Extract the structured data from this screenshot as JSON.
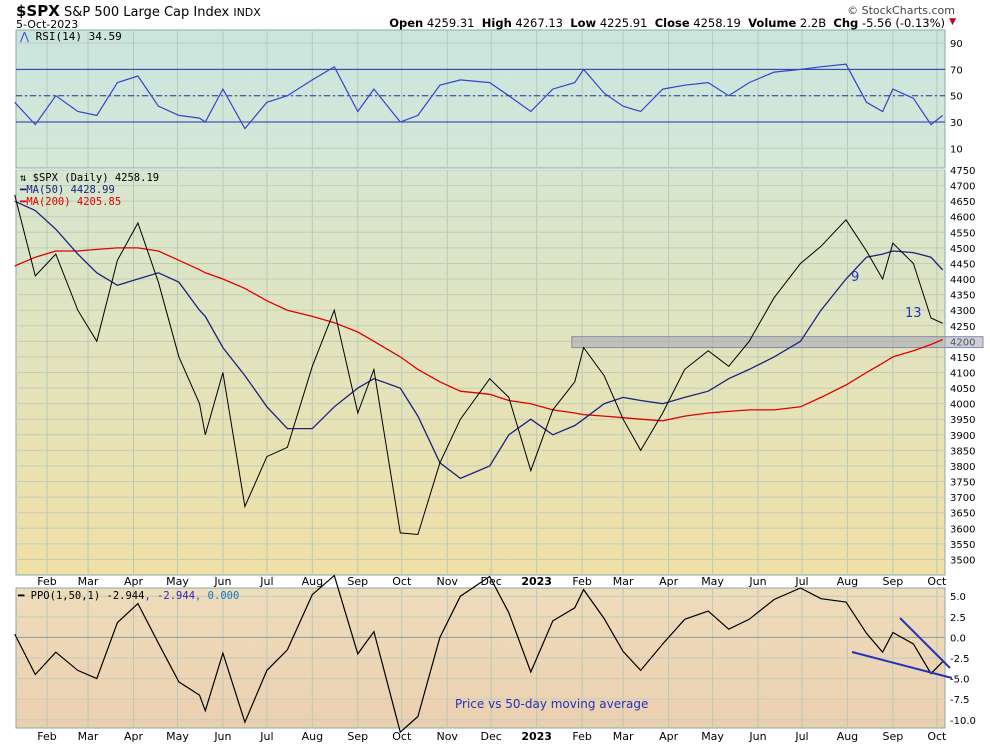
{
  "header": {
    "symbol": "$SPX",
    "name": "S&P 500 Large Cap Index",
    "exchange": "INDX",
    "date": "5-Oct-2023",
    "brand": "© StockCharts.com",
    "open_label": "Open",
    "open": "4259.31",
    "high_label": "High",
    "high": "4267.13",
    "low_label": "Low",
    "low": "4225.91",
    "close_label": "Close",
    "close": "4258.19",
    "volume_label": "Volume",
    "volume": "2.2B",
    "chg_label": "Chg",
    "chg": "-5.56 (-0.13%)",
    "chg_color": "#c00020"
  },
  "colors": {
    "price": "#000000",
    "ma50": "#1a237e",
    "ma200": "#e00000",
    "rsi": "#3344cc",
    "ppo": "#000000",
    "annotation": "#2233bb"
  },
  "chart_data": [
    {
      "type": "line",
      "panel": "rsi",
      "title": "RSI(14) 34.59",
      "ylim": [
        0,
        100
      ],
      "yticks": [
        90,
        70,
        50,
        30,
        10
      ],
      "reference_lines": [
        70,
        50,
        30
      ],
      "x": [
        "2022-01-10",
        "2022-01-24",
        "2022-02-07",
        "2022-02-22",
        "2022-03-07",
        "2022-03-21",
        "2022-04-04",
        "2022-04-18",
        "2022-05-02",
        "2022-05-16",
        "2022-05-20",
        "2022-06-01",
        "2022-06-16",
        "2022-07-01",
        "2022-07-15",
        "2022-08-01",
        "2022-08-16",
        "2022-09-01",
        "2022-09-12",
        "2022-09-30",
        "2022-10-12",
        "2022-10-27",
        "2022-11-10",
        "2022-11-30",
        "2022-12-13",
        "2022-12-28",
        "2023-01-12",
        "2023-01-27",
        "2023-02-02",
        "2023-02-16",
        "2023-03-01",
        "2023-03-13",
        "2023-03-28",
        "2023-04-12",
        "2023-04-28",
        "2023-05-12",
        "2023-05-26",
        "2023-06-12",
        "2023-06-30",
        "2023-07-14",
        "2023-07-31",
        "2023-08-14",
        "2023-08-25",
        "2023-09-01",
        "2023-09-15",
        "2023-09-27",
        "2023-10-05"
      ],
      "values": [
        45,
        28,
        50,
        38,
        35,
        60,
        65,
        42,
        35,
        33,
        30,
        55,
        25,
        45,
        50,
        62,
        72,
        38,
        55,
        30,
        35,
        58,
        62,
        60,
        50,
        38,
        55,
        60,
        70,
        52,
        42,
        38,
        55,
        58,
        60,
        50,
        60,
        68,
        70,
        72,
        74,
        45,
        38,
        55,
        48,
        28,
        35
      ]
    },
    {
      "type": "line",
      "panel": "price",
      "title": "$SPX (Daily) 4258.19",
      "ylim": [
        3450,
        4750
      ],
      "yticks": [
        3500,
        3550,
        3600,
        3650,
        3700,
        3750,
        3800,
        3850,
        3900,
        3950,
        4000,
        4050,
        4100,
        4150,
        4200,
        4250,
        4300,
        4350,
        4400,
        4450,
        4500,
        4550,
        4600,
        4650,
        4700,
        4750
      ],
      "xticks": [
        "Feb",
        "Mar",
        "Apr",
        "May",
        "Jun",
        "Jul",
        "Aug",
        "Sep",
        "Oct",
        "Nov",
        "Dec",
        "2023",
        "Feb",
        "Mar",
        "Apr",
        "May",
        "Jun",
        "Jul",
        "Aug",
        "Sep",
        "Oct"
      ],
      "series": [
        {
          "name": "$SPX",
          "values": [
            4670,
            4410,
            4480,
            4300,
            4200,
            4460,
            4580,
            4390,
            4150,
            4000,
            3900,
            4100,
            3670,
            3830,
            3860,
            4120,
            4300,
            3970,
            4110,
            3585,
            3580,
            3810,
            3950,
            4080,
            4020,
            3785,
            3980,
            4070,
            4180,
            4090,
            3950,
            3850,
            3970,
            4110,
            4170,
            4120,
            4200,
            4340,
            4450,
            4505,
            4590,
            4490,
            4400,
            4515,
            4450,
            4275,
            4258
          ]
        },
        {
          "name": "MA(50) 4428.99",
          "values": [
            4650,
            4620,
            4560,
            4480,
            4420,
            4380,
            4400,
            4420,
            4390,
            4300,
            4280,
            4180,
            4090,
            3990,
            3920,
            3920,
            3990,
            4050,
            4080,
            4050,
            3960,
            3810,
            3760,
            3800,
            3900,
            3950,
            3900,
            3930,
            3950,
            4000,
            4020,
            4010,
            4000,
            4020,
            4040,
            4080,
            4110,
            4150,
            4200,
            4300,
            4400,
            4470,
            4480,
            4490,
            4485,
            4470,
            4429
          ]
        },
        {
          "name": "MA(200) 4205.85",
          "values": [
            4442,
            4470,
            4490,
            4490,
            4495,
            4500,
            4500,
            4490,
            4460,
            4430,
            4420,
            4400,
            4370,
            4330,
            4300,
            4280,
            4260,
            4230,
            4200,
            4150,
            4110,
            4070,
            4040,
            4030,
            4010,
            4000,
            3980,
            3970,
            3965,
            3960,
            3955,
            3950,
            3945,
            3960,
            3970,
            3975,
            3980,
            3980,
            3990,
            4020,
            4060,
            4100,
            4130,
            4150,
            4170,
            4190,
            4206
          ]
        }
      ],
      "annotations": [
        {
          "text": "9"
        },
        {
          "text": "13"
        }
      ],
      "support_zone": {
        "from": "2023-01-25",
        "to": "2023-10-05",
        "range": [
          4180,
          4215
        ]
      }
    },
    {
      "type": "line",
      "panel": "ppo",
      "title": "PPO(1,50,1) -2.944",
      "title_extra": [
        ", -2.944",
        ", 0.000"
      ],
      "ylim": [
        -11,
        6
      ],
      "yticks": [
        "5.0",
        "2.5",
        "0.0",
        "-2.5",
        "-5.0",
        "-7.5",
        "-10.0"
      ],
      "values": [
        0.4,
        -4.5,
        -1.8,
        -4,
        -5,
        1.8,
        4.1,
        -0.7,
        -5.4,
        -7,
        -8.9,
        -1.9,
        -10.3,
        -4,
        -1.5,
        5.2,
        7.5,
        -2,
        0.7,
        -11.5,
        -9.6,
        0,
        5,
        7.4,
        3,
        -4.2,
        2,
        3.6,
        5.8,
        2.3,
        -1.7,
        -4,
        -0.8,
        2.2,
        3.2,
        1,
        2.2,
        4.6,
        6,
        4.7,
        4.3,
        0.5,
        -1.8,
        0.6,
        -0.8,
        -4.4,
        -2.944
      ],
      "annotation": "Price vs 50-day moving average"
    }
  ]
}
